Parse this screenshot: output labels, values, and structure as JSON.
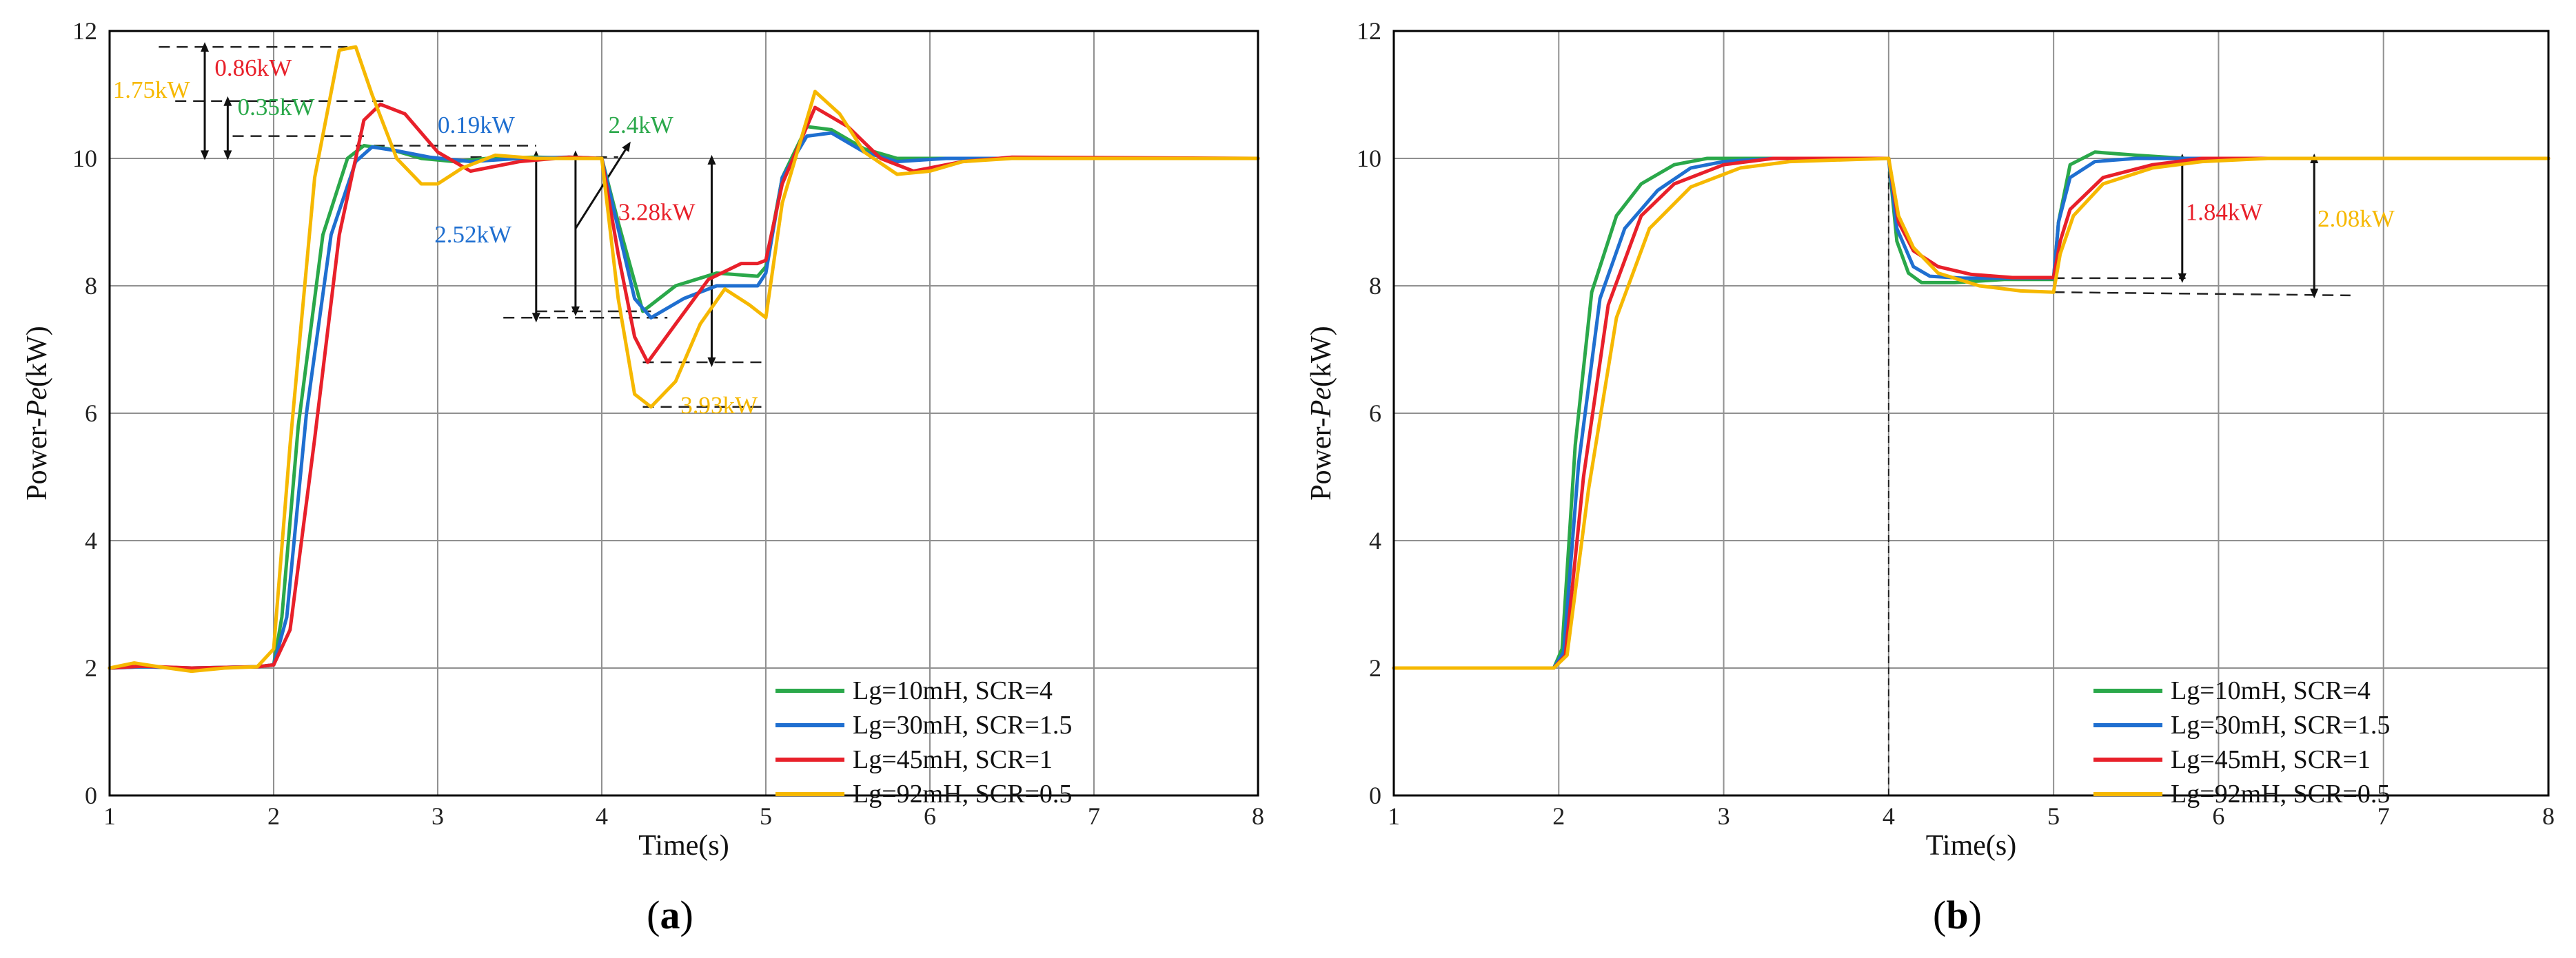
{
  "caption_prefix": "(",
  "caption_suffix": ")",
  "colors": {
    "green": "#2aa84a",
    "blue": "#1f6fd0",
    "red": "#e8202a",
    "yellow": "#f6b800",
    "annotation": "#222222",
    "grid": "#909090",
    "frame": "#000000"
  },
  "chart_data": [
    {
      "type": "line",
      "panel": "a",
      "title": "",
      "xlabel": "Time(s)",
      "ylabel_prefix": "Power-",
      "ylabel_italic": "Pe",
      "ylabel_suffix": "(kW)",
      "xlim": [
        1,
        8
      ],
      "ylim": [
        0,
        12
      ],
      "xticks": [
        1,
        2,
        3,
        4,
        5,
        6,
        7,
        8
      ],
      "yticks": [
        0,
        2,
        4,
        6,
        8,
        10,
        12
      ],
      "grid": true,
      "legend_position": "bottom-right",
      "series": [
        {
          "name": "Lg=10mH, SCR=4",
          "color": "#2aa84a",
          "x": [
            1,
            1.2,
            1.5,
            1.9,
            2.0,
            2.05,
            2.15,
            2.3,
            2.45,
            2.55,
            2.7,
            2.9,
            3.1,
            3.3,
            3.6,
            3.9,
            4.0,
            4.1,
            4.25,
            4.45,
            4.7,
            4.95,
            5.0,
            5.1,
            5.25,
            5.4,
            5.6,
            5.8,
            6.1,
            8
          ],
          "y": [
            2.0,
            2.02,
            2.0,
            2.02,
            2.05,
            2.8,
            5.8,
            8.8,
            10.0,
            10.2,
            10.15,
            10.0,
            9.95,
            10.0,
            10.02,
            10.0,
            10.0,
            9.0,
            7.6,
            8.0,
            8.2,
            8.15,
            8.3,
            9.7,
            10.5,
            10.45,
            10.15,
            10.0,
            10.0,
            10.0
          ]
        },
        {
          "name": "Lg=30mH, SCR=1.5",
          "color": "#1f6fd0",
          "x": [
            1,
            1.2,
            1.5,
            1.9,
            2.0,
            2.08,
            2.2,
            2.35,
            2.5,
            2.6,
            2.75,
            2.95,
            3.2,
            3.5,
            3.8,
            4.0,
            4.1,
            4.2,
            4.3,
            4.5,
            4.7,
            4.95,
            5.0,
            5.1,
            5.25,
            5.4,
            5.6,
            5.8,
            6.1,
            8
          ],
          "y": [
            2.0,
            2.02,
            2.0,
            2.02,
            2.05,
            2.8,
            6.0,
            8.8,
            9.95,
            10.18,
            10.12,
            10.02,
            9.95,
            10.0,
            10.02,
            10.0,
            8.9,
            7.8,
            7.5,
            7.8,
            8.0,
            8.0,
            8.2,
            9.7,
            10.35,
            10.4,
            10.1,
            9.95,
            10.0,
            10.0
          ]
        },
        {
          "name": "Lg=45mH, SCR=1",
          "color": "#e8202a",
          "x": [
            1,
            1.2,
            1.5,
            1.9,
            2.0,
            2.1,
            2.25,
            2.4,
            2.55,
            2.65,
            2.8,
            3.0,
            3.2,
            3.5,
            3.8,
            4.0,
            4.1,
            4.2,
            4.28,
            4.45,
            4.65,
            4.85,
            4.95,
            5.0,
            5.1,
            5.3,
            5.5,
            5.7,
            5.9,
            6.2,
            6.5,
            8
          ],
          "y": [
            2.0,
            2.03,
            2.0,
            2.02,
            2.05,
            2.6,
            5.6,
            8.8,
            10.6,
            10.85,
            10.7,
            10.1,
            9.8,
            9.95,
            10.02,
            10.0,
            8.5,
            7.2,
            6.8,
            7.4,
            8.1,
            8.35,
            8.35,
            8.4,
            9.6,
            10.8,
            10.5,
            10.0,
            9.8,
            9.95,
            10.02,
            10.0
          ]
        },
        {
          "name": "Lg=92mH, SCR=0.5",
          "color": "#f6b800",
          "x": [
            1,
            1.15,
            1.3,
            1.5,
            1.7,
            1.9,
            2.0,
            2.1,
            2.25,
            2.4,
            2.5,
            2.6,
            2.75,
            2.9,
            3.0,
            3.15,
            3.35,
            3.6,
            3.85,
            4.0,
            4.1,
            4.2,
            4.3,
            4.45,
            4.6,
            4.75,
            4.9,
            5.0,
            5.1,
            5.3,
            5.45,
            5.6,
            5.8,
            6.0,
            6.2,
            6.5,
            8
          ],
          "y": [
            2.0,
            2.08,
            2.02,
            1.95,
            2.0,
            2.02,
            2.3,
            5.5,
            9.7,
            11.7,
            11.75,
            11.0,
            10.0,
            9.6,
            9.6,
            9.85,
            10.05,
            10.0,
            10.0,
            10.0,
            7.8,
            6.3,
            6.1,
            6.5,
            7.4,
            7.95,
            7.7,
            7.5,
            9.3,
            11.05,
            10.7,
            10.1,
            9.75,
            9.8,
            9.95,
            10.0,
            10.0
          ]
        }
      ],
      "annotations": [
        {
          "label": "1.75kW",
          "color": "#f6b800",
          "x": 1.02,
          "y": 10.95
        },
        {
          "label": "0.86kW",
          "color": "#e8202a",
          "x": 1.64,
          "y": 11.3
        },
        {
          "label": "0.35kW",
          "color": "#2aa84a",
          "x": 1.78,
          "y": 10.68
        },
        {
          "label": "0.19kW",
          "color": "#1f6fd0",
          "x": 3.0,
          "y": 10.4
        },
        {
          "label": "2.4kW",
          "color": "#2aa84a",
          "x": 4.04,
          "y": 10.4
        },
        {
          "label": "2.52kW",
          "color": "#1f6fd0",
          "x": 2.98,
          "y": 8.68
        },
        {
          "label": "3.28kW",
          "color": "#e8202a",
          "x": 4.1,
          "y": 9.03
        },
        {
          "label": "3.93kW",
          "color": "#f6b800",
          "x": 4.48,
          "y": 6.0
        }
      ]
    },
    {
      "type": "line",
      "panel": "b",
      "title": "",
      "xlabel": "Time(s)",
      "ylabel_prefix": "Power-",
      "ylabel_italic": "Pe",
      "ylabel_suffix": "(kW)",
      "xlim": [
        1,
        8
      ],
      "ylim": [
        0,
        12
      ],
      "xticks": [
        1,
        2,
        3,
        4,
        5,
        6,
        7,
        8
      ],
      "yticks": [
        0,
        2,
        4,
        6,
        8,
        10,
        12
      ],
      "grid": true,
      "legend_position": "bottom-right",
      "series": [
        {
          "name": "Lg=10mH, SCR=4",
          "color": "#2aa84a",
          "x": [
            1,
            1.5,
            1.97,
            2.02,
            2.1,
            2.2,
            2.35,
            2.5,
            2.7,
            2.9,
            3.2,
            4.0,
            4.05,
            4.12,
            4.2,
            4.4,
            4.7,
            5.0,
            5.03,
            5.1,
            5.25,
            5.5,
            5.8,
            6.2,
            8
          ],
          "y": [
            2.0,
            2.0,
            2.0,
            2.3,
            5.5,
            7.9,
            9.1,
            9.6,
            9.9,
            10.0,
            10.0,
            10.0,
            8.7,
            8.2,
            8.05,
            8.05,
            8.1,
            8.1,
            9.0,
            9.9,
            10.1,
            10.05,
            10.0,
            10.0,
            10.0
          ]
        },
        {
          "name": "Lg=30mH, SCR=1.5",
          "color": "#1f6fd0",
          "x": [
            1,
            1.5,
            1.97,
            2.03,
            2.12,
            2.25,
            2.4,
            2.6,
            2.8,
            3.0,
            3.3,
            4.0,
            4.05,
            4.15,
            4.25,
            4.45,
            4.7,
            5.0,
            5.03,
            5.1,
            5.25,
            5.5,
            5.8,
            6.2,
            8
          ],
          "y": [
            2.0,
            2.0,
            2.0,
            2.25,
            5.2,
            7.8,
            8.9,
            9.5,
            9.85,
            9.95,
            10.0,
            10.0,
            8.9,
            8.3,
            8.15,
            8.12,
            8.12,
            8.12,
            9.0,
            9.7,
            9.95,
            10.0,
            10.0,
            10.0,
            10.0
          ]
        },
        {
          "name": "Lg=45mH, SCR=1",
          "color": "#e8202a",
          "x": [
            1,
            1.5,
            1.97,
            2.04,
            2.15,
            2.3,
            2.5,
            2.7,
            3.0,
            3.3,
            4.0,
            4.06,
            4.15,
            4.3,
            4.5,
            4.75,
            5.0,
            5.04,
            5.1,
            5.3,
            5.6,
            5.9,
            6.3,
            8
          ],
          "y": [
            2.0,
            2.0,
            2.0,
            2.2,
            5.0,
            7.7,
            9.1,
            9.6,
            9.9,
            10.0,
            10.0,
            9.0,
            8.55,
            8.3,
            8.18,
            8.13,
            8.13,
            8.7,
            9.2,
            9.7,
            9.9,
            10.0,
            10.0,
            10.0
          ]
        },
        {
          "name": "Lg=92mH, SCR=0.5",
          "color": "#f6b800",
          "x": [
            1,
            1.5,
            1.97,
            2.05,
            2.18,
            2.35,
            2.55,
            2.8,
            3.1,
            3.4,
            4.0,
            4.06,
            4.15,
            4.3,
            4.55,
            4.8,
            5.0,
            5.04,
            5.12,
            5.3,
            5.6,
            5.9,
            6.3,
            8
          ],
          "y": [
            2.0,
            2.0,
            2.0,
            2.2,
            4.8,
            7.5,
            8.9,
            9.55,
            9.85,
            9.95,
            10.0,
            9.1,
            8.6,
            8.2,
            8.0,
            7.92,
            7.9,
            8.5,
            9.1,
            9.6,
            9.85,
            9.95,
            10.0,
            10.0
          ]
        }
      ],
      "annotations": [
        {
          "label": "1.84kW",
          "color": "#e8202a",
          "x": 5.8,
          "y": 9.03
        },
        {
          "label": "2.08kW",
          "color": "#f6b800",
          "x": 6.6,
          "y": 8.93
        }
      ]
    }
  ]
}
